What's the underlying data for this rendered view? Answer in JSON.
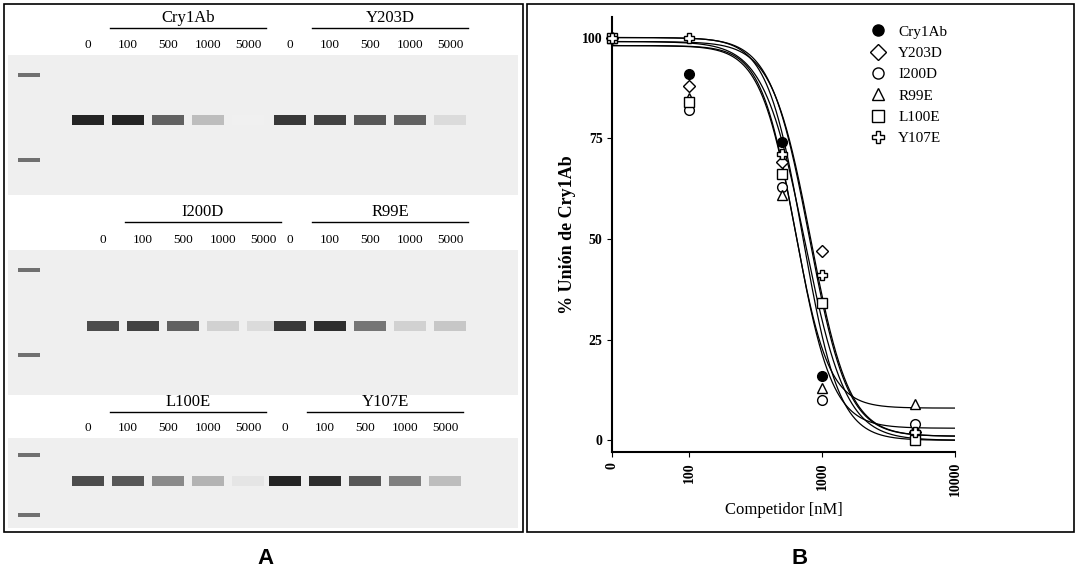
{
  "panel_labels": [
    "A",
    "B"
  ],
  "blots": {
    "concentrations": [
      "0",
      "100",
      "500",
      "1000",
      "5000"
    ],
    "proteins": [
      {
        "name": "Cry1Ab",
        "band_intensity": [
          1.0,
          1.0,
          0.7,
          0.25,
          0.0
        ]
      },
      {
        "name": "Y203D",
        "band_intensity": [
          0.9,
          0.85,
          0.75,
          0.7,
          0.1
        ]
      },
      {
        "name": "I200D",
        "band_intensity": [
          0.8,
          0.85,
          0.7,
          0.15,
          0.1
        ]
      },
      {
        "name": "R99E",
        "band_intensity": [
          0.9,
          0.95,
          0.6,
          0.15,
          0.2
        ]
      },
      {
        "name": "L100E",
        "band_intensity": [
          0.8,
          0.75,
          0.5,
          0.3,
          0.05
        ]
      },
      {
        "name": "Y107E",
        "band_intensity": [
          1.0,
          0.95,
          0.75,
          0.55,
          0.25
        ]
      }
    ]
  },
  "chart_data": {
    "type": "scatter",
    "x_label": "Competidor [nM]",
    "y_label": "% Unión de Cry1Ab",
    "x": [
      0,
      100,
      500,
      1000,
      5000
    ],
    "series": [
      {
        "name": "Cry1Ab",
        "color": "#000000",
        "marker": "filled_circle",
        "values": [
          100,
          91,
          74,
          16,
          0
        ],
        "fit": {
          "top": 100,
          "bottom": 0,
          "ic50": 720,
          "hill": 3.2
        }
      },
      {
        "name": "Y203D",
        "color": "#000000",
        "marker": "diamond",
        "values": [
          100,
          88,
          69,
          47,
          2
        ],
        "fit": {
          "top": 99,
          "bottom": 1,
          "ic50": 820,
          "hill": 3.0
        }
      },
      {
        "name": "I200D",
        "color": "#000000",
        "marker": "circle",
        "values": [
          100,
          82,
          63,
          10,
          4
        ],
        "fit": {
          "top": 98,
          "bottom": 3,
          "ic50": 640,
          "hill": 3.2
        }
      },
      {
        "name": "R99E",
        "color": "#000000",
        "marker": "triangle",
        "values": [
          100,
          85,
          61,
          13,
          9
        ],
        "fit": {
          "top": 98,
          "bottom": 8,
          "ic50": 620,
          "hill": 3.4
        }
      },
      {
        "name": "L100E",
        "color": "#000000",
        "marker": "square",
        "values": [
          100,
          84,
          66,
          34,
          0
        ],
        "fit": {
          "top": 99,
          "bottom": 0,
          "ic50": 740,
          "hill": 2.8
        }
      },
      {
        "name": "Y107E",
        "color": "#000000",
        "marker": "plus",
        "values": [
          100,
          100,
          71,
          41,
          2
        ],
        "fit": {
          "top": 100,
          "bottom": 1,
          "ic50": 800,
          "hill": 3.0
        }
      }
    ],
    "xlim": [
      0,
      10000
    ],
    "xticks": [
      0,
      100,
      1000,
      10000
    ],
    "ylim": [
      -3,
      105
    ],
    "yticks": [
      0,
      25,
      50,
      75,
      100
    ],
    "log": "x",
    "grid": false,
    "legend": "upper right"
  }
}
